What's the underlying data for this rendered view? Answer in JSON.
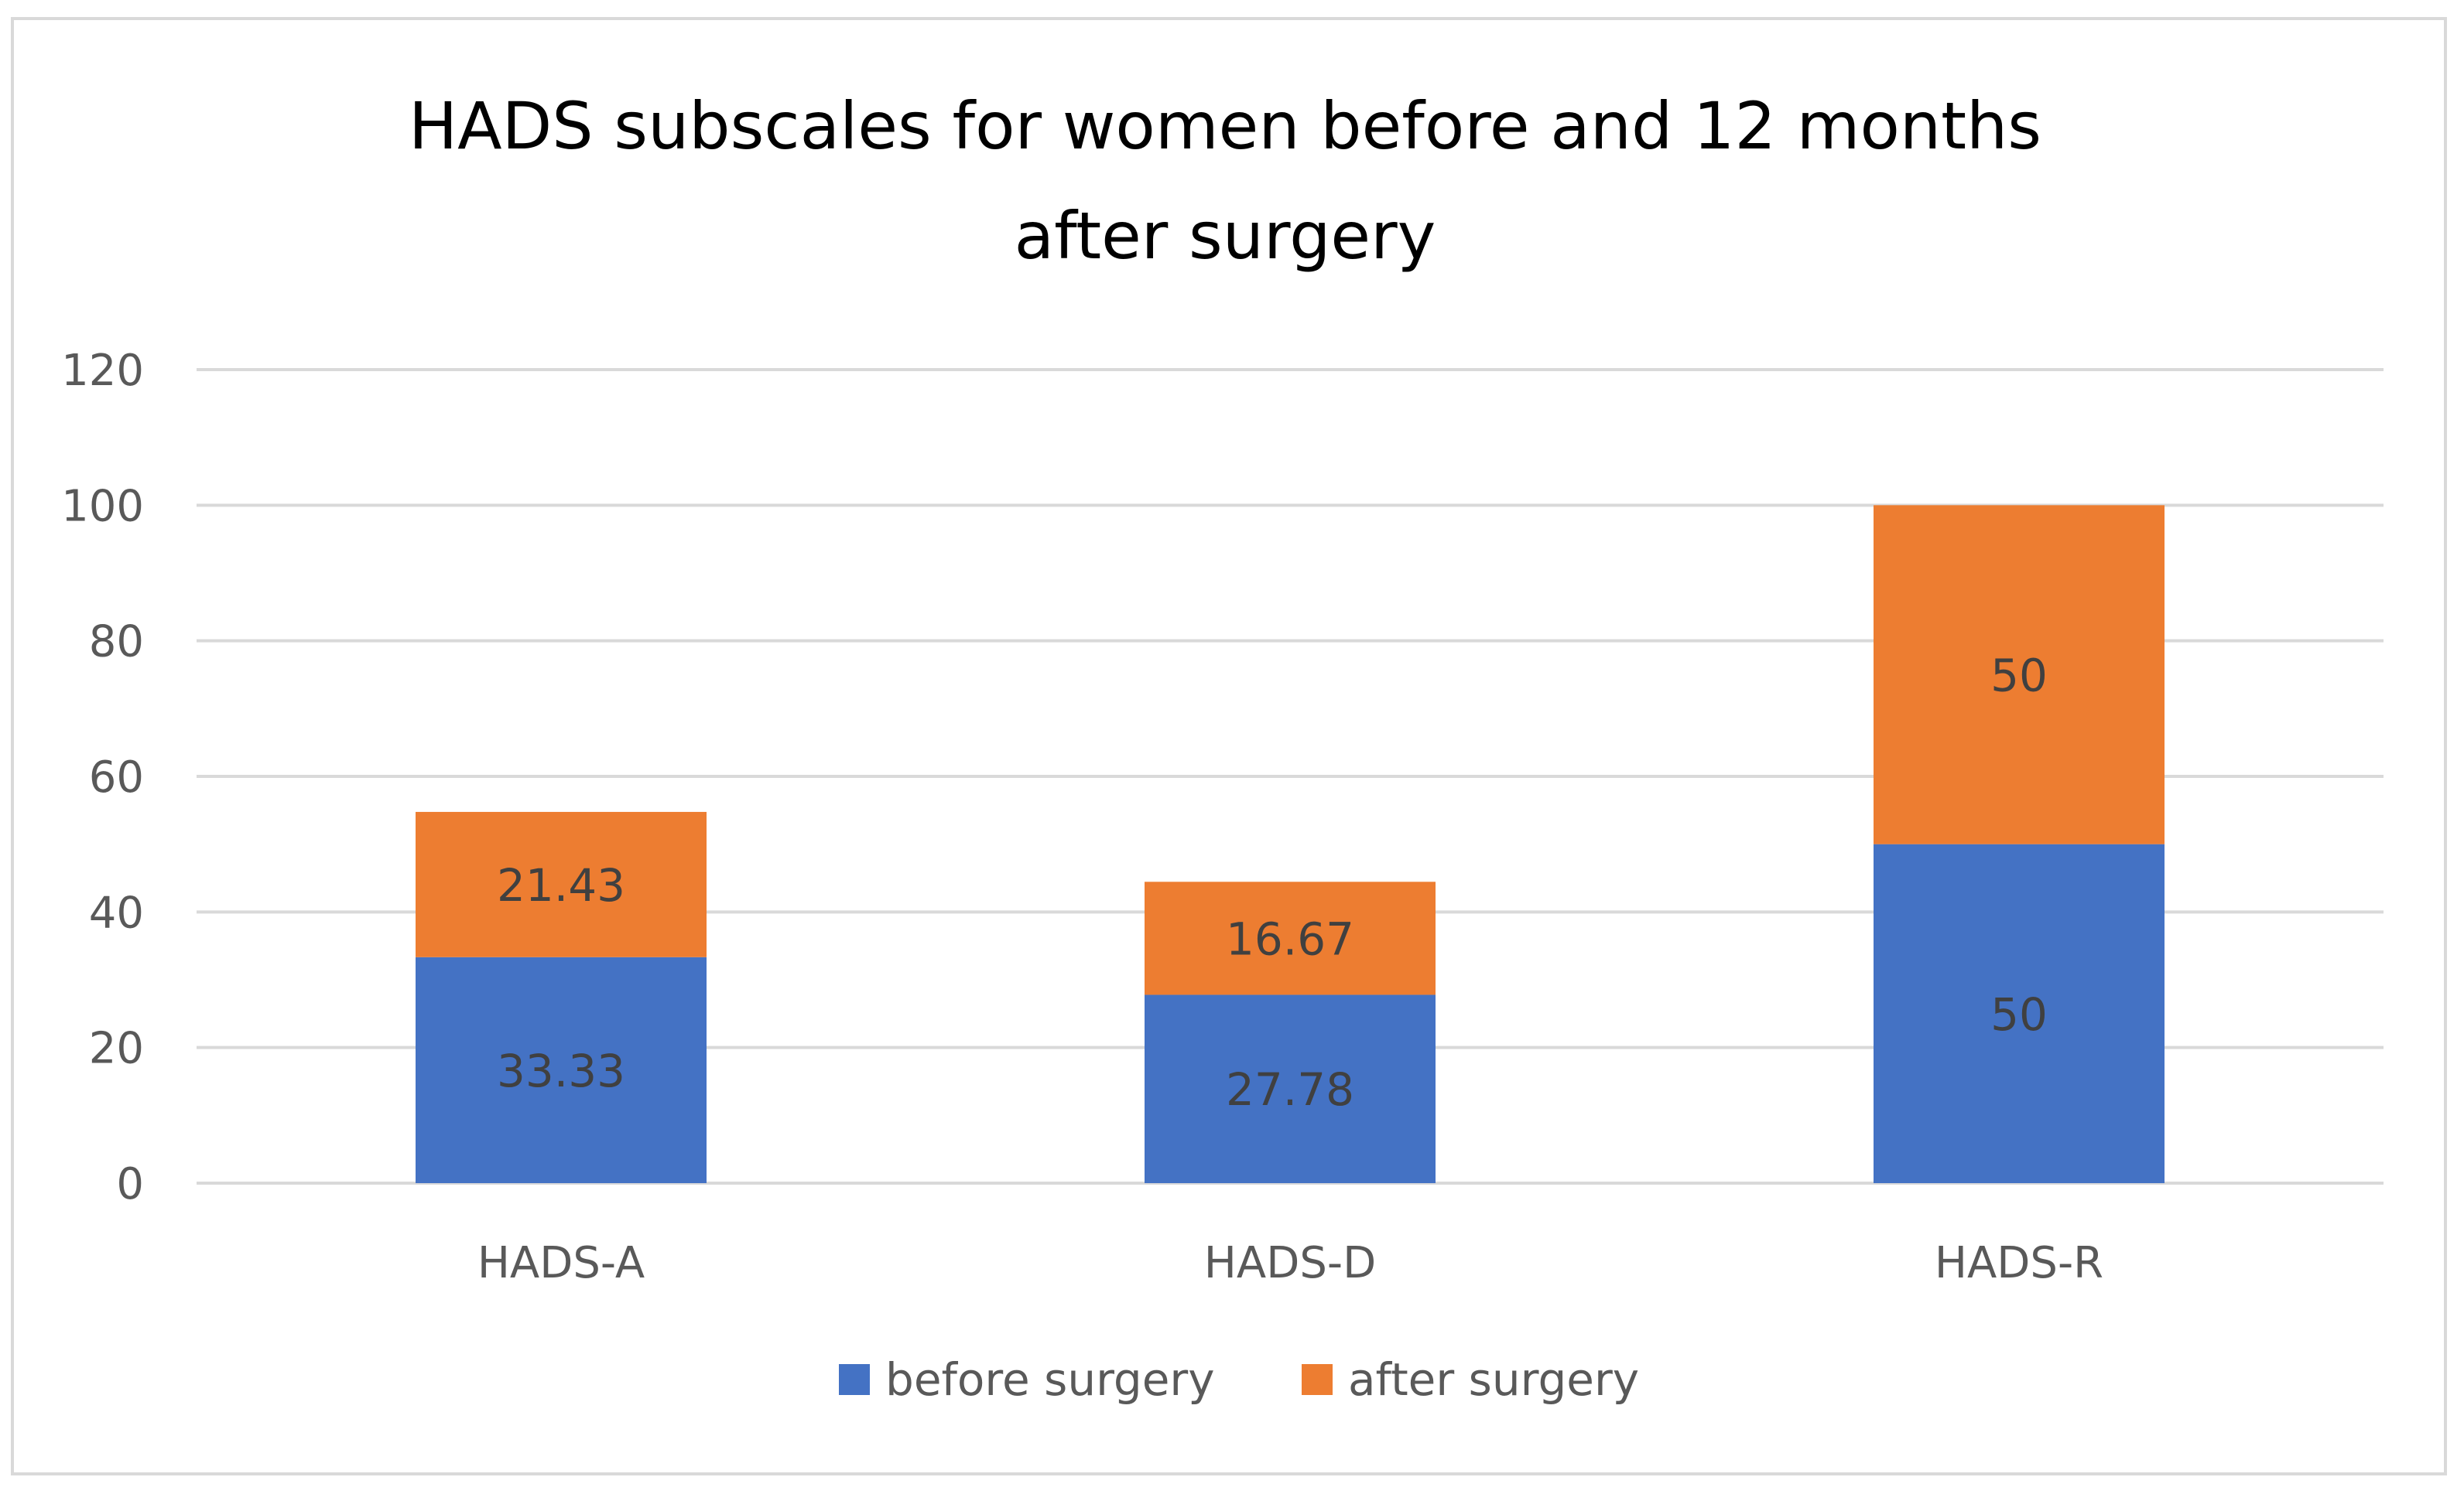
{
  "chart_data": {
    "type": "bar",
    "stacked": true,
    "title": "HADS subscales for women before and 12 months after surgery",
    "title_lines": [
      "HADS subscales for women before and 12 months",
      "after surgery"
    ],
    "categories": [
      "HADS-A",
      "HADS-D",
      "HADS-R"
    ],
    "series": [
      {
        "name": "before surgery",
        "color": "#4472c4",
        "values": [
          33.33,
          27.78,
          50
        ],
        "labels": [
          "33.33",
          "27.78",
          "50"
        ]
      },
      {
        "name": "after surgery",
        "color": "#ed7d31",
        "values": [
          21.43,
          16.67,
          50
        ],
        "labels": [
          "21.43",
          "16.67",
          "50"
        ]
      }
    ],
    "ylim": [
      0,
      120
    ],
    "yticks": [
      "0",
      "20",
      "40",
      "60",
      "80",
      "100",
      "120"
    ],
    "ytick_values": [
      0,
      20,
      40,
      60,
      80,
      100,
      120
    ],
    "xlabel": "",
    "ylabel": "",
    "grid": true,
    "legend_position": "bottom"
  }
}
